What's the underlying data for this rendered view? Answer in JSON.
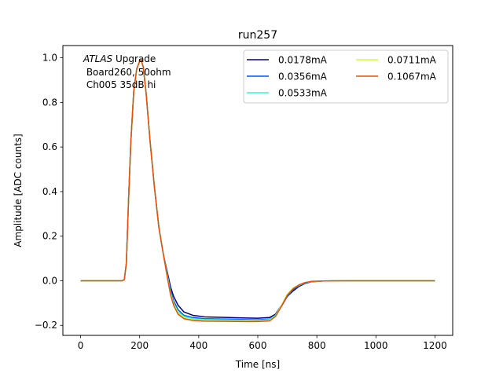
{
  "chart_data": {
    "type": "line",
    "title": "run257",
    "xlabel": "Time [ns]",
    "ylabel": "Amplitude [ADC counts]",
    "xlim": [
      -60,
      1260
    ],
    "ylim": [
      -0.245,
      1.055
    ],
    "xticks": [
      0,
      200,
      400,
      600,
      800,
      1000,
      1200
    ],
    "yticks": [
      -0.2,
      0.0,
      0.2,
      0.4,
      0.6,
      0.8,
      1.0
    ],
    "xtick_labels": [
      "0",
      "200",
      "400",
      "600",
      "800",
      "1000",
      "1200"
    ],
    "ytick_labels": [
      "−0.2",
      "0.0",
      "0.2",
      "0.4",
      "0.6",
      "0.8",
      "1.0"
    ],
    "grid": false,
    "legend_placement": "upper-right",
    "legend_columns": 2,
    "annotation": {
      "line1_italic": "ATLAS",
      "line1_rest": " Upgrade",
      "line2": " Board260, 50ohm",
      "line3": " Ch005 35dB hi"
    },
    "series": [
      {
        "name": "0.0178mA",
        "color": "#00007f",
        "points": [
          [
            0,
            0
          ],
          [
            100,
            0
          ],
          [
            140,
            0
          ],
          [
            148,
            0.005
          ],
          [
            155,
            0.08
          ],
          [
            162,
            0.35
          ],
          [
            170,
            0.62
          ],
          [
            180,
            0.85
          ],
          [
            190,
            0.95
          ],
          [
            200,
            0.985
          ],
          [
            205,
            0.99
          ],
          [
            212,
            0.96
          ],
          [
            222,
            0.84
          ],
          [
            235,
            0.63
          ],
          [
            250,
            0.42
          ],
          [
            265,
            0.24
          ],
          [
            280,
            0.12
          ],
          [
            295,
            0.03
          ],
          [
            305,
            -0.03
          ],
          [
            315,
            -0.07
          ],
          [
            330,
            -0.11
          ],
          [
            350,
            -0.14
          ],
          [
            380,
            -0.155
          ],
          [
            420,
            -0.162
          ],
          [
            500,
            -0.165
          ],
          [
            560,
            -0.167
          ],
          [
            600,
            -0.168
          ],
          [
            640,
            -0.165
          ],
          [
            660,
            -0.15
          ],
          [
            680,
            -0.11
          ],
          [
            700,
            -0.07
          ],
          [
            720,
            -0.045
          ],
          [
            740,
            -0.025
          ],
          [
            760,
            -0.012
          ],
          [
            780,
            -0.005
          ],
          [
            820,
            -0.001
          ],
          [
            900,
            0
          ],
          [
            1000,
            0
          ],
          [
            1200,
            0
          ]
        ]
      },
      {
        "name": "0.0356mA",
        "color": "#0054ff",
        "points": [
          [
            0,
            0
          ],
          [
            100,
            0
          ],
          [
            140,
            0
          ],
          [
            148,
            0.005
          ],
          [
            155,
            0.08
          ],
          [
            162,
            0.35
          ],
          [
            170,
            0.62
          ],
          [
            180,
            0.85
          ],
          [
            190,
            0.95
          ],
          [
            200,
            0.985
          ],
          [
            205,
            0.99
          ],
          [
            212,
            0.96
          ],
          [
            222,
            0.84
          ],
          [
            235,
            0.63
          ],
          [
            250,
            0.42
          ],
          [
            265,
            0.24
          ],
          [
            280,
            0.12
          ],
          [
            295,
            0.02
          ],
          [
            305,
            -0.045
          ],
          [
            315,
            -0.09
          ],
          [
            330,
            -0.13
          ],
          [
            350,
            -0.155
          ],
          [
            380,
            -0.165
          ],
          [
            420,
            -0.17
          ],
          [
            500,
            -0.172
          ],
          [
            560,
            -0.174
          ],
          [
            600,
            -0.175
          ],
          [
            640,
            -0.172
          ],
          [
            660,
            -0.155
          ],
          [
            680,
            -0.115
          ],
          [
            700,
            -0.07
          ],
          [
            720,
            -0.04
          ],
          [
            740,
            -0.022
          ],
          [
            760,
            -0.01
          ],
          [
            780,
            -0.004
          ],
          [
            820,
            -0.001
          ],
          [
            900,
            0
          ],
          [
            1000,
            0
          ],
          [
            1200,
            0
          ]
        ]
      },
      {
        "name": "0.0533mA",
        "color": "#29ffce",
        "points": [
          [
            0,
            0
          ],
          [
            100,
            0
          ],
          [
            140,
            0
          ],
          [
            148,
            0.005
          ],
          [
            155,
            0.08
          ],
          [
            162,
            0.35
          ],
          [
            170,
            0.62
          ],
          [
            180,
            0.85
          ],
          [
            190,
            0.95
          ],
          [
            200,
            0.985
          ],
          [
            205,
            0.99
          ],
          [
            212,
            0.96
          ],
          [
            222,
            0.84
          ],
          [
            235,
            0.63
          ],
          [
            250,
            0.42
          ],
          [
            265,
            0.24
          ],
          [
            280,
            0.12
          ],
          [
            295,
            0.015
          ],
          [
            305,
            -0.055
          ],
          [
            315,
            -0.1
          ],
          [
            330,
            -0.14
          ],
          [
            350,
            -0.16
          ],
          [
            380,
            -0.17
          ],
          [
            420,
            -0.174
          ],
          [
            500,
            -0.176
          ],
          [
            560,
            -0.177
          ],
          [
            600,
            -0.178
          ],
          [
            640,
            -0.174
          ],
          [
            660,
            -0.155
          ],
          [
            680,
            -0.11
          ],
          [
            700,
            -0.06
          ],
          [
            720,
            -0.035
          ],
          [
            740,
            -0.02
          ],
          [
            760,
            -0.009
          ],
          [
            780,
            -0.004
          ],
          [
            820,
            -0.001
          ],
          [
            900,
            0
          ],
          [
            1000,
            0
          ],
          [
            1200,
            0
          ]
        ]
      },
      {
        "name": "0.0711mA",
        "color": "#ceff29",
        "points": [
          [
            0,
            0
          ],
          [
            100,
            0
          ],
          [
            140,
            0
          ],
          [
            148,
            0.005
          ],
          [
            155,
            0.08
          ],
          [
            162,
            0.35
          ],
          [
            170,
            0.62
          ],
          [
            180,
            0.85
          ],
          [
            190,
            0.95
          ],
          [
            200,
            0.985
          ],
          [
            205,
            0.99
          ],
          [
            212,
            0.96
          ],
          [
            222,
            0.84
          ],
          [
            235,
            0.63
          ],
          [
            250,
            0.42
          ],
          [
            265,
            0.24
          ],
          [
            280,
            0.12
          ],
          [
            295,
            0.01
          ],
          [
            305,
            -0.06
          ],
          [
            315,
            -0.105
          ],
          [
            330,
            -0.145
          ],
          [
            350,
            -0.165
          ],
          [
            380,
            -0.175
          ],
          [
            420,
            -0.178
          ],
          [
            500,
            -0.18
          ],
          [
            560,
            -0.18
          ],
          [
            600,
            -0.181
          ],
          [
            640,
            -0.177
          ],
          [
            660,
            -0.158
          ],
          [
            680,
            -0.11
          ],
          [
            700,
            -0.06
          ],
          [
            720,
            -0.033
          ],
          [
            740,
            -0.018
          ],
          [
            760,
            -0.008
          ],
          [
            780,
            -0.003
          ],
          [
            820,
            -0.001
          ],
          [
            900,
            0
          ],
          [
            1000,
            0
          ],
          [
            1200,
            0
          ]
        ]
      },
      {
        "name": "0.1067mA",
        "color": "#e84d0e",
        "points": [
          [
            0,
            0
          ],
          [
            100,
            0
          ],
          [
            140,
            0
          ],
          [
            148,
            0.005
          ],
          [
            155,
            0.08
          ],
          [
            162,
            0.35
          ],
          [
            170,
            0.62
          ],
          [
            180,
            0.85
          ],
          [
            190,
            0.95
          ],
          [
            200,
            0.985
          ],
          [
            205,
            0.99
          ],
          [
            212,
            0.96
          ],
          [
            222,
            0.84
          ],
          [
            235,
            0.63
          ],
          [
            250,
            0.42
          ],
          [
            265,
            0.24
          ],
          [
            280,
            0.12
          ],
          [
            295,
            0.005
          ],
          [
            305,
            -0.065
          ],
          [
            315,
            -0.11
          ],
          [
            330,
            -0.15
          ],
          [
            350,
            -0.17
          ],
          [
            380,
            -0.178
          ],
          [
            420,
            -0.181
          ],
          [
            500,
            -0.182
          ],
          [
            560,
            -0.183
          ],
          [
            600,
            -0.183
          ],
          [
            640,
            -0.18
          ],
          [
            660,
            -0.16
          ],
          [
            680,
            -0.115
          ],
          [
            700,
            -0.065
          ],
          [
            720,
            -0.035
          ],
          [
            740,
            -0.018
          ],
          [
            760,
            -0.008
          ],
          [
            780,
            -0.003
          ],
          [
            820,
            -0.001
          ],
          [
            900,
            0
          ],
          [
            1000,
            0
          ],
          [
            1200,
            0
          ]
        ]
      }
    ]
  }
}
